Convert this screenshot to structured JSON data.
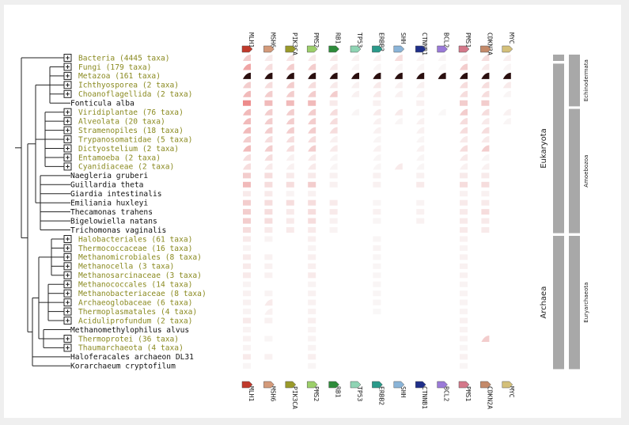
{
  "genes": [
    {
      "name": "MLH1",
      "color": "#c0392b"
    },
    {
      "name": "MSH6",
      "color": "#d49a7a"
    },
    {
      "name": "PIK3CA",
      "color": "#9a9a2a"
    },
    {
      "name": "PMS2",
      "color": "#9ccf6a"
    },
    {
      "name": "RB1",
      "color": "#2e8b3a"
    },
    {
      "name": "TP53",
      "color": "#8fd4b4"
    },
    {
      "name": "ERBB2",
      "color": "#2a9a8a"
    },
    {
      "name": "SHH",
      "color": "#8ab4d8"
    },
    {
      "name": "CTNNB1",
      "color": "#1f2f8a"
    },
    {
      "name": "BCL2",
      "color": "#9a7ad8"
    },
    {
      "name": "PMS1",
      "color": "#d4788a"
    },
    {
      "name": "CDKN2A",
      "color": "#c48a6a"
    },
    {
      "name": "MYC",
      "color": "#d4c07a"
    }
  ],
  "taxa": [
    {
      "label": "Bacteria (4445 taxa)",
      "collapsed": true,
      "color": "#8a8a20"
    },
    {
      "label": "Fungi (179 taxa)",
      "collapsed": true,
      "color": "#8a8a20"
    },
    {
      "label": "Metazoa (161 taxa)",
      "collapsed": true,
      "color": "#8a8a20"
    },
    {
      "label": "Ichthyosporea (2 taxa)",
      "collapsed": true,
      "color": "#8a8a20"
    },
    {
      "label": "Choanoflagellida (2 taxa)",
      "collapsed": true,
      "color": "#8a8a20"
    },
    {
      "label": "Fonticula alba",
      "collapsed": false,
      "color": "#111111"
    },
    {
      "label": "Viridiplantae (76 taxa)",
      "collapsed": true,
      "color": "#8a8a20"
    },
    {
      "label": "Alveolata (20 taxa)",
      "collapsed": true,
      "color": "#8a8a20"
    },
    {
      "label": "Stramenopiles (18 taxa)",
      "collapsed": true,
      "color": "#8a8a20"
    },
    {
      "label": "Trypanosomatidae (5 taxa)",
      "collapsed": true,
      "color": "#8a8a20"
    },
    {
      "label": "Dictyostelium (2 taxa)",
      "collapsed": true,
      "color": "#8a8a20"
    },
    {
      "label": "Entamoeba (2 taxa)",
      "collapsed": true,
      "color": "#8a8a20"
    },
    {
      "label": "Cyanidiaceae (2 taxa)",
      "collapsed": true,
      "color": "#8a8a20"
    },
    {
      "label": "Naegleria gruberi",
      "collapsed": false,
      "color": "#111111"
    },
    {
      "label": "Guillardia theta",
      "collapsed": false,
      "color": "#111111"
    },
    {
      "label": "Giardia intestinalis",
      "collapsed": false,
      "color": "#111111"
    },
    {
      "label": "Emiliania huxleyi",
      "collapsed": false,
      "color": "#111111"
    },
    {
      "label": "Thecamonas trahens",
      "collapsed": false,
      "color": "#111111"
    },
    {
      "label": "Bigelowiella natans",
      "collapsed": false,
      "color": "#111111"
    },
    {
      "label": "Trichomonas vaginalis",
      "collapsed": false,
      "color": "#111111"
    },
    {
      "label": "Halobacteriales (61 taxa)",
      "collapsed": true,
      "color": "#8a8a20"
    },
    {
      "label": "Thermococcaceae (16 taxa)",
      "collapsed": true,
      "color": "#8a8a20"
    },
    {
      "label": "Methanomicrobiales (8 taxa)",
      "collapsed": true,
      "color": "#8a8a20"
    },
    {
      "label": "Methanocella (3 taxa)",
      "collapsed": true,
      "color": "#8a8a20"
    },
    {
      "label": "Methanosarcinaceae (3 taxa)",
      "collapsed": true,
      "color": "#8a8a20"
    },
    {
      "label": "Methanococcales (14 taxa)",
      "collapsed": true,
      "color": "#8a8a20"
    },
    {
      "label": "Methanobacteriaceae (8 taxa)",
      "collapsed": true,
      "color": "#8a8a20"
    },
    {
      "label": "Archaeoglobaceae (6 taxa)",
      "collapsed": true,
      "color": "#8a8a20"
    },
    {
      "label": "Thermoplasmatales (4 taxa)",
      "collapsed": true,
      "color": "#8a8a20"
    },
    {
      "label": "Aciduliprofundum (2 taxa)",
      "collapsed": true,
      "color": "#8a8a20"
    },
    {
      "label": "Methanomethylophilus alvus",
      "collapsed": false,
      "color": "#111111"
    },
    {
      "label": "Thermoprotei (36 taxa)",
      "collapsed": true,
      "color": "#8a8a20"
    },
    {
      "label": "Thaumarchaeota (4 taxa)",
      "collapsed": true,
      "color": "#8a8a20"
    },
    {
      "label": "Haloferacales archaeon DL31",
      "collapsed": false,
      "color": "#111111"
    },
    {
      "label": "Korarchaeum cryptofilum",
      "collapsed": false,
      "color": "#111111"
    }
  ],
  "heatmap": {
    "cell_kinds": "b = bar (single genome), w = wedge (collapsed group), 0 = absent; intensity 0-1",
    "rows": [
      [
        "w.5",
        "w.3",
        "w.35",
        "w.3",
        "w.3",
        "w.2",
        "w.2",
        "w.4",
        "w.15",
        "w.1",
        "w.3",
        "w.4",
        "w.25"
      ],
      [
        "w.7",
        "w.4",
        "w.5",
        "w.5",
        "w.3",
        "w.1",
        "w.1",
        "w.1",
        "w.1",
        "w.05",
        "w.5",
        "w.3",
        "w.1"
      ],
      [
        "w1",
        "w1",
        "w1",
        "w1",
        "w1",
        "w1",
        "w1",
        "w1",
        "w1",
        "w1",
        "w1",
        "w1",
        "w1"
      ],
      [
        "w.5",
        "w.4",
        "w.5",
        "w.4",
        "w.3",
        "w.2",
        "w.3",
        "w.2",
        "w.2",
        "0",
        "w.4",
        "w.4",
        "w.3"
      ],
      [
        "w.6",
        "w.5",
        "w.5",
        "w.5",
        "w.5",
        "w.2",
        "w.3",
        "w.2",
        "w.2",
        "0",
        "w.4",
        "w.4",
        "w.1"
      ],
      [
        "b.8",
        "b.6",
        "b.6",
        "b.6",
        "b.3",
        "0",
        "b.2",
        "0",
        "b.2",
        "0",
        "b.5",
        "b.5",
        "0"
      ],
      [
        "w.6",
        "w.5",
        "w.5",
        "w.5",
        "w.4",
        "w.1",
        "w.3",
        "w.3",
        "w.2",
        "w.05",
        "w.5",
        "w.4",
        "w.2"
      ],
      [
        "w.6",
        "w.5",
        "w.5",
        "w.5",
        "w.4",
        "0",
        "w.2",
        "w.1",
        "w.2",
        "0",
        "w.4",
        "w.3",
        "w.1"
      ],
      [
        "w.6",
        "w.5",
        "w.5",
        "w.5",
        "w.4",
        "0",
        "w.2",
        "0",
        "w.2",
        "0",
        "w.4",
        "w.4",
        "0"
      ],
      [
        "w.5",
        "w.4",
        "w.4",
        "w.4",
        "w.2",
        "0",
        "w.1",
        "0",
        "w.1",
        "0",
        "w.3",
        "w.3",
        "0"
      ],
      [
        "w.6",
        "w.5",
        "w.4",
        "w.5",
        "w.3",
        "0",
        "w.2",
        "0",
        "w.2",
        "0",
        "w.4",
        "w.5",
        "0"
      ],
      [
        "w.4",
        "w.4",
        "w.2",
        "w.3",
        "w.1",
        "0",
        "w.1",
        "0",
        "w.1",
        "0",
        "w.3",
        "w.1",
        "0"
      ],
      [
        "w.4",
        "w.3",
        "w.2",
        "w.3",
        "w.1",
        "0",
        "w.1",
        "w.3",
        "w.1",
        "0",
        "w.2",
        "w.2",
        "0"
      ],
      [
        "b.5",
        "b.4",
        "b.3",
        "b.3",
        "b.2",
        "0",
        "b.2",
        "0",
        "b.2",
        "0",
        "b.3",
        "b.3",
        "0"
      ],
      [
        "b.6",
        "b.4",
        "b.4",
        "b.5",
        "b.2",
        "0",
        "b.2",
        "0",
        "b.3",
        "0",
        "b.4",
        "b.4",
        "0"
      ],
      [
        "b.3",
        "b.3",
        "b.15",
        "b.2",
        "0",
        "0",
        "0",
        "0",
        "0",
        "0",
        "b.2",
        "b.2",
        "0"
      ],
      [
        "b.5",
        "b.4",
        "b.4",
        "b.4",
        "b.3",
        "0",
        "b.1",
        "0",
        "b.15",
        "0",
        "b.3",
        "b.3",
        "0"
      ],
      [
        "b.5",
        "b.4",
        "b.3",
        "b.4",
        "b.3",
        "0",
        "b.2",
        "0",
        "b.2",
        "0",
        "b.3",
        "b.4",
        "0"
      ],
      [
        "b.5",
        "b.4",
        "b.3",
        "b.4",
        "b.2",
        "0",
        "b.1",
        "0",
        "b.2",
        "0",
        "b.3",
        "b.3",
        "0"
      ],
      [
        "b.4",
        "b.3",
        "b.3",
        "b.3",
        "b.15",
        "0",
        "0",
        "0",
        "0",
        "0",
        "b.3",
        "b.3",
        "0"
      ],
      [
        "b.3",
        "b.15",
        "0",
        "b.25",
        "0",
        "0",
        "b.1",
        "0",
        "0",
        "0",
        "b.2",
        "0",
        "0"
      ],
      [
        "b.15",
        "0",
        "0",
        "b.15",
        "0",
        "0",
        "b.15",
        "0",
        "0",
        "0",
        "b.15",
        "0",
        "0"
      ],
      [
        "b.3",
        "b.2",
        "0",
        "b.25",
        "0",
        "0",
        "b.1",
        "0",
        "0",
        "0",
        "b.2",
        "0",
        "0"
      ],
      [
        "b.3",
        "b.2",
        "0",
        "b.25",
        "0",
        "0",
        "b.1",
        "0",
        "0",
        "0",
        "b.2",
        "0",
        "0"
      ],
      [
        "b.3",
        "b.2",
        "0",
        "b.3",
        "0",
        "0",
        "b.1",
        "0",
        "0",
        "0",
        "b.2",
        "0",
        "0"
      ],
      [
        "b.15",
        "0",
        "0",
        "b.15",
        "0",
        "0",
        "b.1",
        "0",
        "0",
        "0",
        "b.15",
        "0",
        "0"
      ],
      [
        "b.2",
        "b.15",
        "0",
        "b.2",
        "0",
        "0",
        "b.1",
        "0",
        "0",
        "0",
        "b.15",
        "0",
        "0"
      ],
      [
        "b.2",
        "w.3",
        "0",
        "b.2",
        "0",
        "0",
        "b.1",
        "0",
        "0",
        "0",
        "b.15",
        "0",
        "0"
      ],
      [
        "b.15",
        "w.2",
        "0",
        "b.2",
        "0",
        "0",
        "b.05",
        "0",
        "0",
        "0",
        "b.15",
        "0",
        "0"
      ],
      [
        "b.3",
        "b.2",
        "0",
        "b.25",
        "0",
        "0",
        "0",
        "0",
        "0",
        "0",
        "b.2",
        "0",
        "0"
      ],
      [
        "b.15",
        "0",
        "0",
        "b.15",
        "0",
        "0",
        "0",
        "0",
        "0",
        "0",
        "b.15",
        "0",
        "0"
      ],
      [
        "b.2",
        "b.1",
        "0",
        "b.15",
        "0",
        "0",
        "0",
        "0",
        "0",
        "0",
        "b.15",
        "w.5",
        "0"
      ],
      [
        "b.15",
        "0",
        "0",
        "b.15",
        "0",
        "0",
        "0",
        "0",
        "0",
        "0",
        "b.1",
        "0",
        "0"
      ],
      [
        "b.3",
        "b.2",
        "0",
        "b.25",
        "0",
        "0",
        "0",
        "0",
        "0",
        "0",
        "b.2",
        "0",
        "0"
      ],
      [
        "b.1",
        "0",
        "0",
        "b.1",
        "0",
        "0",
        "0",
        "0",
        "0",
        "0",
        "b.1",
        "0",
        "0"
      ]
    ]
  },
  "groups": [
    {
      "label": "Eukaryota",
      "start_row": 1,
      "end_row": 19
    },
    {
      "label": "Archaea",
      "start_row": 20,
      "end_row": 34
    }
  ],
  "subgroups": [
    {
      "label": "Echinodermata",
      "start_row": 0,
      "end_row": 5
    },
    {
      "label": "Amoebozoa",
      "start_row": 6,
      "end_row": 19
    },
    {
      "label": "Euryarchaeota",
      "start_row": 20,
      "end_row": 34
    }
  ]
}
